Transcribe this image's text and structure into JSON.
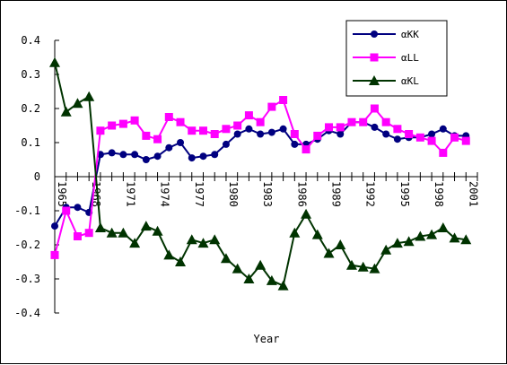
{
  "chart_data": {
    "type": "line",
    "xlabel": "Year",
    "ylabel": "",
    "title": "",
    "ylim": [
      -0.4,
      0.4
    ],
    "yticks": [
      0.4,
      0.3,
      0.2,
      0.1,
      0,
      -0.1,
      -0.2,
      -0.3,
      -0.4
    ],
    "ytick_labels": [
      "0.4",
      "0.3",
      "0.2",
      "0.1",
      "0",
      "-0.1",
      "-0.2",
      "-0.3",
      "-0.4"
    ],
    "xlim": [
      1965,
      2002
    ],
    "xtick_labels": [
      "1965",
      "1968",
      "1971",
      "1974",
      "1977",
      "1980",
      "1983",
      "1986",
      "1989",
      "1992",
      "1995",
      "1998",
      "2001"
    ],
    "x": [
      1965,
      1966,
      1967,
      1968,
      1969,
      1970,
      1971,
      1972,
      1973,
      1974,
      1975,
      1976,
      1977,
      1978,
      1979,
      1980,
      1981,
      1982,
      1983,
      1984,
      1985,
      1986,
      1987,
      1988,
      1989,
      1990,
      1991,
      1992,
      1993,
      1994,
      1995,
      1996,
      1997,
      1998,
      1999,
      2000,
      2001
    ],
    "legend_position": "top-right",
    "grid": false,
    "series": [
      {
        "name": "αKK",
        "color": "#000080",
        "marker": "circle",
        "values": [
          -0.145,
          -0.09,
          -0.09,
          -0.105,
          0.065,
          0.07,
          0.065,
          0.065,
          0.05,
          0.06,
          0.085,
          0.1,
          0.055,
          0.06,
          0.065,
          0.095,
          0.125,
          0.14,
          0.125,
          0.13,
          0.14,
          0.095,
          0.095,
          0.11,
          0.135,
          0.125,
          0.16,
          0.16,
          0.145,
          0.125,
          0.11,
          0.115,
          0.115,
          0.125,
          0.14,
          0.12,
          0.12
        ]
      },
      {
        "name": "αLL",
        "color": "#ff00ff",
        "marker": "square",
        "values": [
          -0.23,
          -0.1,
          -0.175,
          -0.165,
          0.135,
          0.15,
          0.155,
          0.165,
          0.12,
          0.11,
          0.175,
          0.16,
          0.135,
          0.135,
          0.125,
          0.14,
          0.15,
          0.18,
          0.16,
          0.205,
          0.225,
          0.125,
          0.08,
          0.12,
          0.145,
          0.145,
          0.16,
          0.16,
          0.2,
          0.16,
          0.14,
          0.125,
          0.115,
          0.105,
          0.07,
          0.115,
          0.105
        ]
      },
      {
        "name": "αKL",
        "color": "#003300",
        "marker": "triangle",
        "values": [
          0.335,
          0.19,
          0.215,
          0.235,
          -0.15,
          -0.165,
          -0.165,
          -0.195,
          -0.145,
          -0.16,
          -0.23,
          -0.25,
          -0.185,
          -0.195,
          -0.185,
          -0.24,
          -0.27,
          -0.3,
          -0.26,
          -0.305,
          -0.32,
          -0.165,
          -0.11,
          -0.17,
          -0.225,
          -0.2,
          -0.26,
          -0.265,
          -0.27,
          -0.215,
          -0.195,
          -0.19,
          -0.175,
          -0.17,
          -0.15,
          -0.18,
          -0.185
        ]
      }
    ]
  }
}
